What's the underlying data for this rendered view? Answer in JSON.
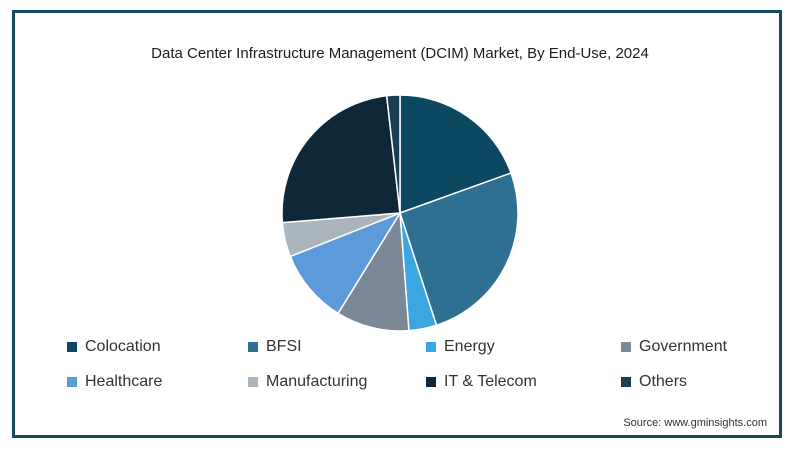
{
  "chart_data": {
    "type": "pie",
    "title": "Data Center Infrastructure Management (DCIM) Market, By End-Use, 2024",
    "legend_position": "bottom",
    "slices": [
      {
        "label": "Colocation",
        "value": 19.5,
        "color": "#0d4862"
      },
      {
        "label": "BFSI",
        "value": 25.5,
        "color": "#2f6f91"
      },
      {
        "label": "Energy",
        "value": 3.8,
        "color": "#3ba7e2"
      },
      {
        "label": "Government",
        "value": 10.0,
        "color": "#7b8996"
      },
      {
        "label": "Healthcare",
        "value": 10.2,
        "color": "#5c9ad9"
      },
      {
        "label": "Manufacturing",
        "value": 4.7,
        "color": "#aab5bd"
      },
      {
        "label": "IT & Telecom",
        "value": 24.5,
        "color": "#0e2739"
      },
      {
        "label": "Others",
        "value": 1.8,
        "color": "#1a3f55"
      }
    ]
  },
  "source": "Source: www.gminsights.com"
}
